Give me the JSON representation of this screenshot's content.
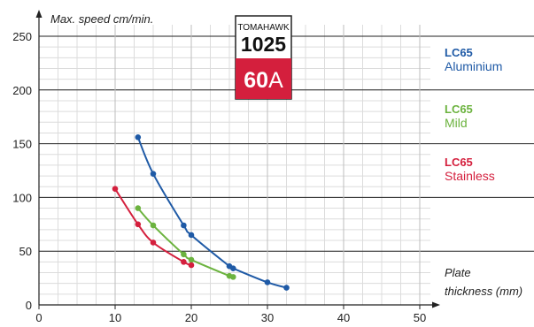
{
  "chart_data": {
    "type": "line",
    "ylabel": "Max. speed cm/min.",
    "xlabel_line1": "Plate",
    "xlabel_line2": "thickness (mm)",
    "xlim": [
      0,
      52
    ],
    "ylim": [
      0,
      255
    ],
    "xticks": [
      0,
      10,
      20,
      30,
      40,
      50
    ],
    "yticks": [
      0,
      50,
      100,
      150,
      200,
      250
    ],
    "grid": true,
    "legend_placement": "right",
    "series": [
      {
        "model": "LC65",
        "material": "Aluminium",
        "color": "#1f5aa6",
        "x": [
          13,
          15,
          19,
          20,
          25,
          25.5,
          30,
          32.5
        ],
        "y": [
          156,
          122,
          74,
          65,
          36,
          34,
          21,
          16
        ]
      },
      {
        "model": "LC65",
        "material": "Mild",
        "color": "#6cb33f",
        "x": [
          13,
          15,
          19,
          20,
          25,
          25.5
        ],
        "y": [
          90,
          74,
          47,
          42,
          27,
          26
        ]
      },
      {
        "model": "LC65",
        "material": "Stainless",
        "color": "#d41f3d",
        "x": [
          10,
          13,
          15,
          19,
          20
        ],
        "y": [
          108,
          75,
          58,
          40,
          37
        ]
      }
    ]
  },
  "badge": {
    "brand": "TOMAHAWK",
    "model": "1025",
    "amp_number": "60",
    "amp_unit": "A",
    "color": "#d41f3d"
  }
}
